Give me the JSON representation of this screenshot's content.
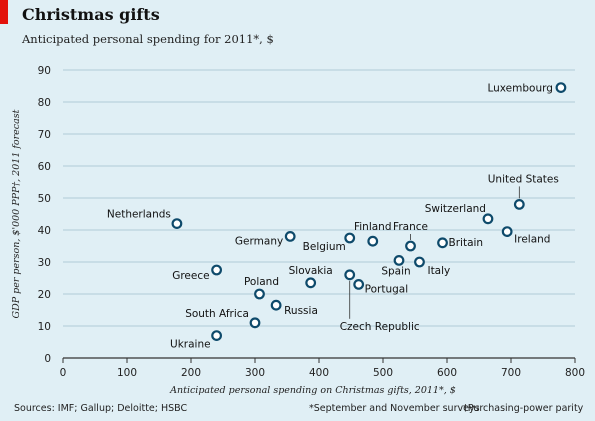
{
  "header": {
    "title": "Christmas gifts",
    "subtitle": "Anticipated personal spending for 2011*, $"
  },
  "footer": {
    "source": "Sources: IMF; Gallup; Deloitte; HSBC",
    "footnote1": "*September and November surveys",
    "footnote2": "†Purchasing-power parity"
  },
  "colors": {
    "background": "#e0eff5",
    "accent": "#e3120b",
    "marker_stroke": "#0e4a6b",
    "marker_fill": "#ffffff",
    "gridline": "#9fbfcc"
  },
  "chart_data": {
    "type": "scatter",
    "title": "Christmas gifts",
    "subtitle": "Anticipated personal spending for 2011*, $",
    "xlabel": "Anticipated personal spending on Christmas gifts, 2011*, $",
    "ylabel": "GDP per person, $'000 PPP†, 2011 forecast",
    "xlim": [
      0,
      800
    ],
    "ylim": [
      0,
      90
    ],
    "xticks": [
      0,
      100,
      200,
      300,
      400,
      500,
      600,
      700,
      800
    ],
    "yticks": [
      0,
      10,
      20,
      30,
      40,
      50,
      60,
      70,
      80,
      90
    ],
    "grid": "horizontal",
    "points": [
      {
        "label": "Luxembourg",
        "x": 778,
        "y": 84.5
      },
      {
        "label": "United States",
        "x": 713,
        "y": 48
      },
      {
        "label": "Switzerland",
        "x": 664,
        "y": 43.5
      },
      {
        "label": "Ireland",
        "x": 694,
        "y": 39.5
      },
      {
        "label": "Netherlands",
        "x": 178,
        "y": 42
      },
      {
        "label": "Finland",
        "x": 484,
        "y": 36.5
      },
      {
        "label": "France",
        "x": 543,
        "y": 35
      },
      {
        "label": "Britain",
        "x": 593,
        "y": 36
      },
      {
        "label": "Germany",
        "x": 355,
        "y": 38
      },
      {
        "label": "Belgium",
        "x": 448,
        "y": 37.5
      },
      {
        "label": "Spain",
        "x": 525,
        "y": 30.5
      },
      {
        "label": "Italy",
        "x": 557,
        "y": 30
      },
      {
        "label": "Greece",
        "x": 240,
        "y": 27.5
      },
      {
        "label": "Slovakia",
        "x": 387,
        "y": 23.5
      },
      {
        "label": "Portugal",
        "x": 462,
        "y": 23
      },
      {
        "label": "Czech Republic",
        "x": 448,
        "y": 26
      },
      {
        "label": "Poland",
        "x": 307,
        "y": 20
      },
      {
        "label": "Russia",
        "x": 333,
        "y": 16.5
      },
      {
        "label": "South Africa",
        "x": 300,
        "y": 11
      },
      {
        "label": "Ukraine",
        "x": 240,
        "y": 7
      }
    ]
  }
}
